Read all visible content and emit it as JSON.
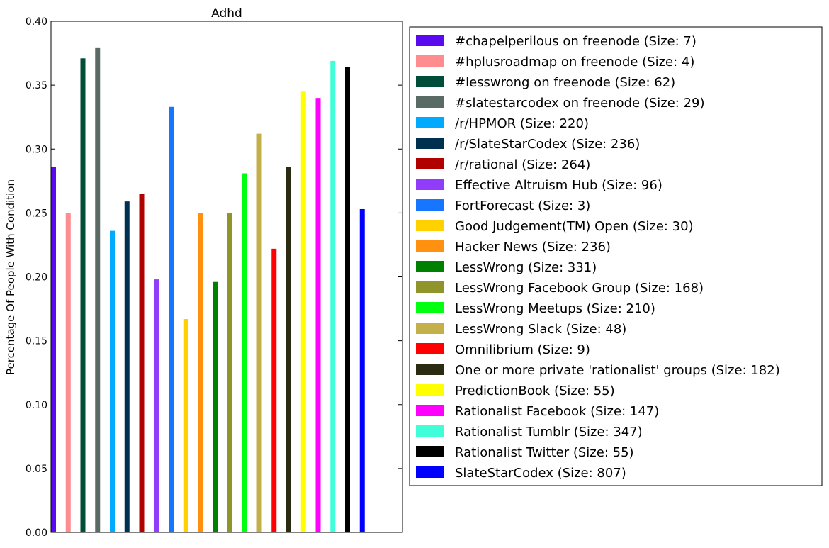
{
  "chart_data": {
    "type": "bar",
    "title": "Adhd",
    "xlabel": "",
    "ylabel": "Percentage Of People With Condition",
    "ylim": [
      0,
      0.4
    ],
    "yticks": [
      "0.00",
      "0.05",
      "0.10",
      "0.15",
      "0.20",
      "0.25",
      "0.30",
      "0.35",
      "0.40"
    ],
    "grid": false,
    "legend_position": "right",
    "series": [
      {
        "name": "#chapelperilous on freenode (Size: 7)",
        "value": 0.286,
        "color": "#5a0aee"
      },
      {
        "name": "#hplusroadmap on freenode (Size: 4)",
        "value": 0.25,
        "color": "#ff8c8f"
      },
      {
        "name": "#lesswrong on freenode (Size: 62)",
        "value": 0.371,
        "color": "#004d3a"
      },
      {
        "name": "#slatestarcodex on freenode (Size: 29)",
        "value": 0.379,
        "color": "#5a6a65"
      },
      {
        "name": "/r/HPMOR (Size: 220)",
        "value": 0.236,
        "color": "#00aaff"
      },
      {
        "name": "/r/SlateStarCodex (Size: 236)",
        "value": 0.259,
        "color": "#00304f"
      },
      {
        "name": "/r/rational (Size: 264)",
        "value": 0.265,
        "color": "#b00000"
      },
      {
        "name": "Effective Altruism Hub (Size: 96)",
        "value": 0.198,
        "color": "#903cfa"
      },
      {
        "name": "FortForecast (Size: 3)",
        "value": 0.333,
        "color": "#1676ff"
      },
      {
        "name": "Good Judgement(TM) Open (Size: 30)",
        "value": 0.167,
        "color": "#ffd100"
      },
      {
        "name": "Hacker News (Size: 236)",
        "value": 0.25,
        "color": "#ff9010"
      },
      {
        "name": "LessWrong (Size: 331)",
        "value": 0.196,
        "color": "#008000"
      },
      {
        "name": "LessWrong Facebook Group (Size: 168)",
        "value": 0.25,
        "color": "#8f952a"
      },
      {
        "name": "LessWrong Meetups (Size: 210)",
        "value": 0.281,
        "color": "#00ff10"
      },
      {
        "name": "LessWrong Slack (Size: 48)",
        "value": 0.312,
        "color": "#c4b04a"
      },
      {
        "name": "Omnilibrium (Size: 9)",
        "value": 0.222,
        "color": "#ff0000"
      },
      {
        "name": "One or more private 'rationalist' groups (Size: 182)",
        "value": 0.286,
        "color": "#2b2b12"
      },
      {
        "name": "PredictionBook (Size: 55)",
        "value": 0.345,
        "color": "#ffff00"
      },
      {
        "name": "Rationalist Facebook (Size: 147)",
        "value": 0.34,
        "color": "#ff00ff"
      },
      {
        "name": "Rationalist Tumblr (Size: 347)",
        "value": 0.369,
        "color": "#40ffd8"
      },
      {
        "name": "Rationalist Twitter (Size: 55)",
        "value": 0.364,
        "color": "#000000"
      },
      {
        "name": "SlateStarCodex (Size: 807)",
        "value": 0.253,
        "color": "#0000ff"
      }
    ]
  }
}
